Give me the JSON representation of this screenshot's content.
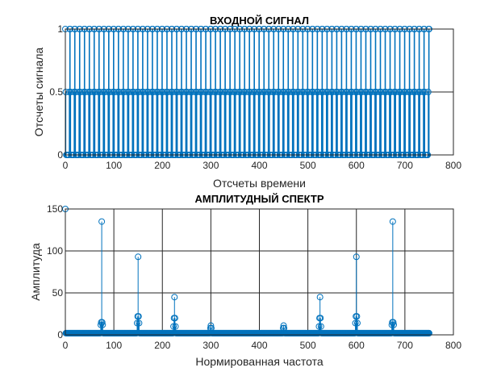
{
  "colors": {
    "stem": "#0072bd",
    "axis": "#262626",
    "background": "#ffffff"
  },
  "chart_data": [
    {
      "type": "stem",
      "title": "ВХОДНОЙ СИГНАЛ",
      "xlabel": "Отсчеты времени",
      "ylabel": "Отсчеты сигнала",
      "xlim": [
        0,
        800
      ],
      "ylim": [
        0,
        1
      ],
      "xticks": [
        "0",
        "100",
        "200",
        "300",
        "400",
        "500",
        "600",
        "700",
        "800"
      ],
      "yticks": [
        "0",
        "0.5",
        "1"
      ],
      "grid": "y-only",
      "n_samples": 751,
      "period": 10,
      "pattern": [
        1,
        0.5,
        0,
        0,
        0,
        0,
        0,
        0,
        0.5,
        1
      ]
    },
    {
      "type": "stem",
      "title": "АМПЛИТУДНЫЙ СПЕКТР",
      "xlabel": "Нормированная частота",
      "ylabel": "Амплитуда",
      "xlim": [
        0,
        800
      ],
      "ylim": [
        0,
        150
      ],
      "xticks": [
        "0",
        "100",
        "200",
        "300",
        "400",
        "500",
        "600",
        "700",
        "800"
      ],
      "yticks": [
        "0",
        "50",
        "100",
        "150"
      ],
      "grid": "both",
      "baseline": 2,
      "peaks": [
        {
          "x": 0,
          "y": 150
        },
        {
          "x": 73,
          "y": 12
        },
        {
          "x": 74,
          "y": 15
        },
        {
          "x": 75,
          "y": 135
        },
        {
          "x": 76,
          "y": 15
        },
        {
          "x": 77,
          "y": 12
        },
        {
          "x": 148,
          "y": 14
        },
        {
          "x": 149,
          "y": 22
        },
        {
          "x": 150,
          "y": 93
        },
        {
          "x": 151,
          "y": 22
        },
        {
          "x": 152,
          "y": 14
        },
        {
          "x": 223,
          "y": 10
        },
        {
          "x": 224,
          "y": 20
        },
        {
          "x": 225,
          "y": 45
        },
        {
          "x": 226,
          "y": 20
        },
        {
          "x": 227,
          "y": 10
        },
        {
          "x": 299,
          "y": 8
        },
        {
          "x": 300,
          "y": 11
        },
        {
          "x": 301,
          "y": 8
        },
        {
          "x": 449,
          "y": 8
        },
        {
          "x": 450,
          "y": 11
        },
        {
          "x": 451,
          "y": 8
        },
        {
          "x": 523,
          "y": 10
        },
        {
          "x": 524,
          "y": 20
        },
        {
          "x": 525,
          "y": 45
        },
        {
          "x": 526,
          "y": 20
        },
        {
          "x": 527,
          "y": 10
        },
        {
          "x": 598,
          "y": 14
        },
        {
          "x": 599,
          "y": 22
        },
        {
          "x": 600,
          "y": 93
        },
        {
          "x": 601,
          "y": 22
        },
        {
          "x": 602,
          "y": 14
        },
        {
          "x": 673,
          "y": 12
        },
        {
          "x": 674,
          "y": 15
        },
        {
          "x": 675,
          "y": 135
        },
        {
          "x": 676,
          "y": 15
        },
        {
          "x": 677,
          "y": 12
        }
      ],
      "n_samples": 751
    }
  ]
}
